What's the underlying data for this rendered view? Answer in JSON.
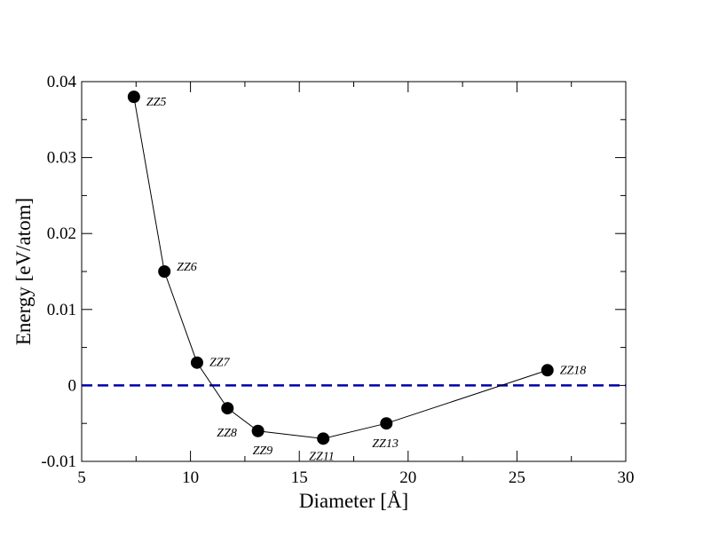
{
  "chart_data": {
    "type": "line",
    "title": "",
    "xlabel": "Diameter [Å]",
    "ylabel": "Energy [eV/atom]",
    "xlim": [
      5,
      30
    ],
    "ylim": [
      -0.01,
      0.04
    ],
    "x_ticks": [
      5,
      10,
      15,
      20,
      25,
      30
    ],
    "x_tick_labels": [
      "5",
      "10",
      "15",
      "20",
      "25",
      "30"
    ],
    "y_ticks": [
      -0.01,
      0,
      0.01,
      0.02,
      0.03,
      0.04
    ],
    "y_tick_labels": [
      "-0.01",
      "0",
      "0.01",
      "0.02",
      "0.03",
      "0.04"
    ],
    "grid": false,
    "series": [
      {
        "color": "#000000",
        "marker": "circle",
        "points": [
          {
            "x": 7.4,
            "y": 0.038,
            "label": "ZZ5"
          },
          {
            "x": 8.8,
            "y": 0.015,
            "label": "ZZ6"
          },
          {
            "x": 10.3,
            "y": 0.003,
            "label": "ZZ7"
          },
          {
            "x": 11.7,
            "y": -0.003,
            "label": "ZZ8"
          },
          {
            "x": 13.1,
            "y": -0.006,
            "label": "ZZ9"
          },
          {
            "x": 16.1,
            "y": -0.007,
            "label": "ZZ11"
          },
          {
            "x": 19.0,
            "y": -0.005,
            "label": "ZZ13"
          },
          {
            "x": 26.4,
            "y": 0.002,
            "label": "ZZ18"
          }
        ]
      }
    ],
    "reference_line": {
      "y": 0,
      "color": "#0000aa",
      "style": "dashed"
    }
  }
}
